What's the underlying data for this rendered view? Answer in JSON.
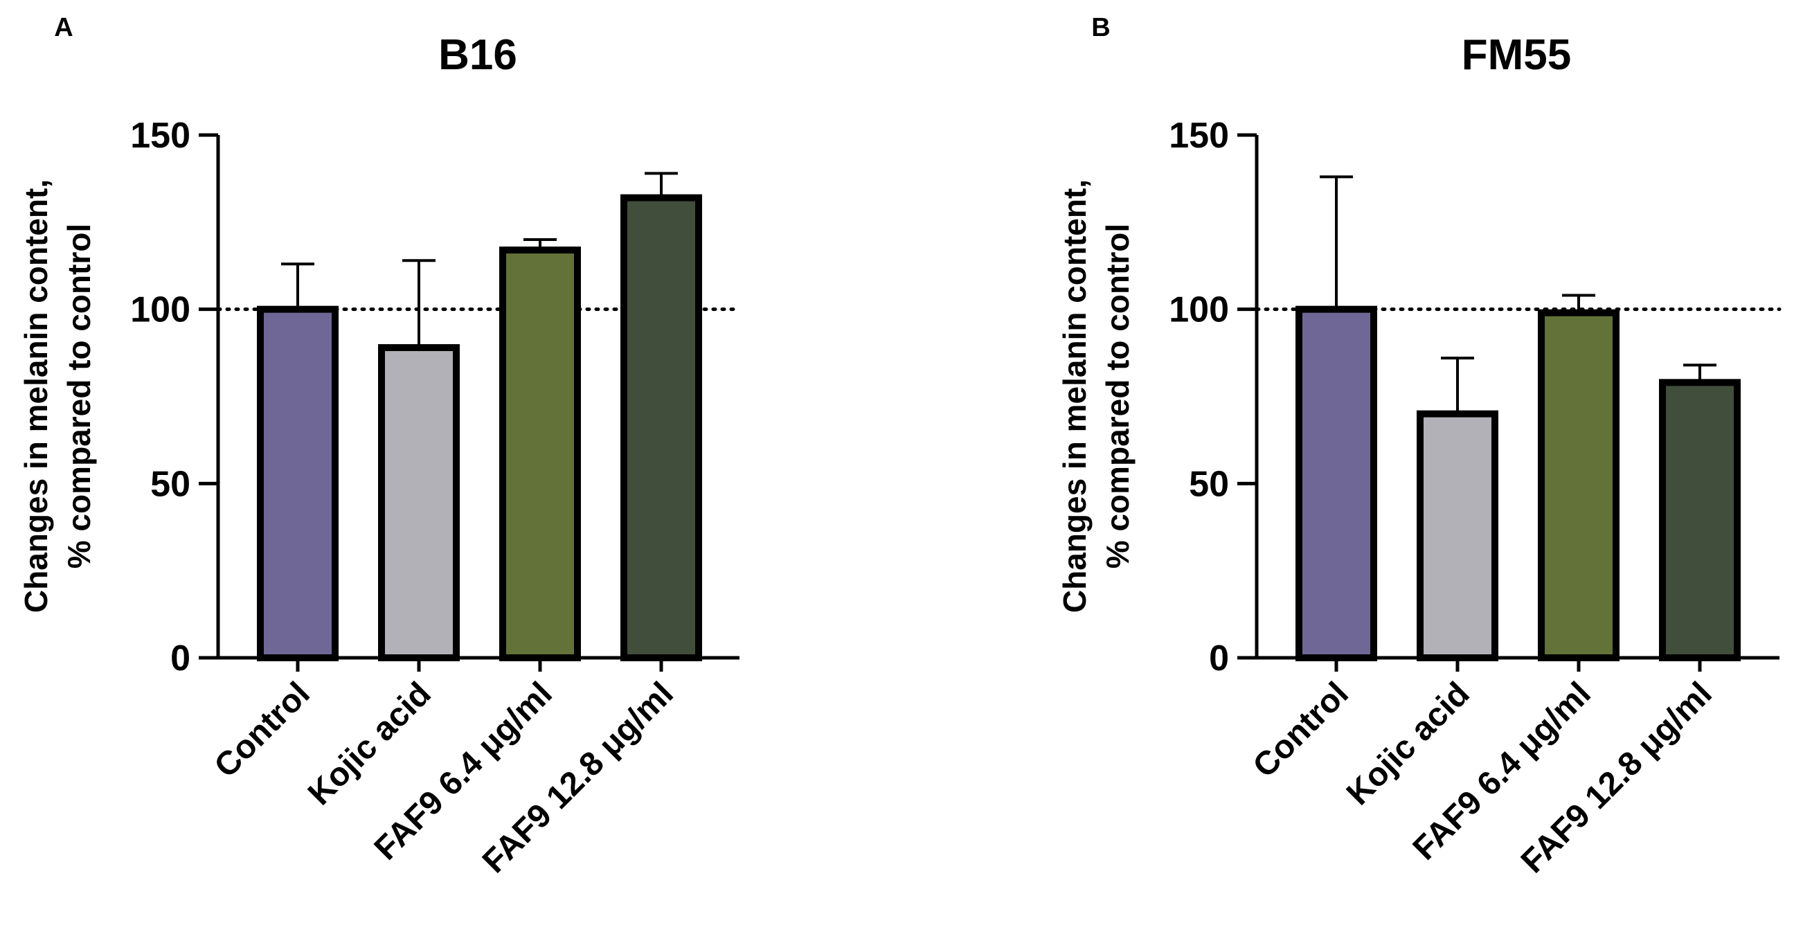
{
  "chart_data": [
    {
      "panel_label": "A",
      "type": "bar",
      "title": "B16",
      "ylabel_line1": "Changes in melanin content,",
      "ylabel_line2": "% compared to control",
      "ylim": [
        0,
        150
      ],
      "yticks": [
        0,
        50,
        100,
        150
      ],
      "reference_line": 100,
      "categories": [
        "Control",
        "Kojic acid",
        "FAF9 6.4 μg/ml",
        "FAF9 12.8 μg/ml"
      ],
      "values": [
        100,
        89,
        117,
        132
      ],
      "errors": [
        13,
        25,
        3,
        7
      ],
      "colors": [
        "#6f6896",
        "#b2b1b7",
        "#627238",
        "#414e3b"
      ]
    },
    {
      "panel_label": "B",
      "type": "bar",
      "title": "FM55",
      "ylabel_line1": "Changes in melanin content,",
      "ylabel_line2": "% compared to control",
      "ylim": [
        0,
        150
      ],
      "yticks": [
        0,
        50,
        100,
        150
      ],
      "reference_line": 100,
      "categories": [
        "Control",
        "Kojic acid",
        "FAF9 6.4 μg/ml",
        "FAF9 12.8 μg/ml"
      ],
      "values": [
        100,
        70,
        99,
        79
      ],
      "errors": [
        38,
        16,
        5,
        5
      ],
      "colors": [
        "#6f6896",
        "#b2b1b7",
        "#627238",
        "#414e3b"
      ]
    }
  ]
}
